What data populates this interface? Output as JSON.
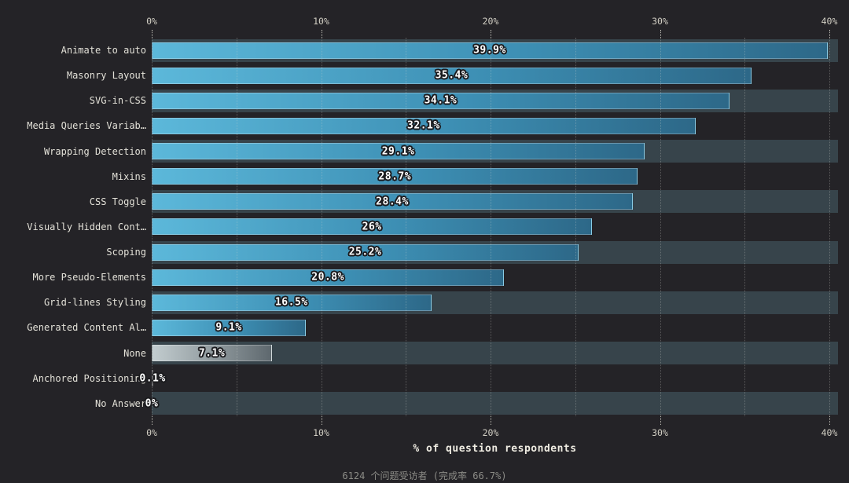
{
  "chart_data": {
    "type": "bar",
    "orientation": "horizontal",
    "xlabel": "% of question respondents",
    "footer": "6124 个问题受访者 (完成率 66.7%)",
    "xlim": [
      0,
      40.5
    ],
    "grid": true,
    "gridline_step_pct": 5,
    "x_ticks": [
      {
        "value": 0,
        "label": "0%"
      },
      {
        "value": 10,
        "label": "10%"
      },
      {
        "value": 20,
        "label": "20%"
      },
      {
        "value": 30,
        "label": "30%"
      },
      {
        "value": 40,
        "label": "40%"
      }
    ],
    "bars": [
      {
        "label": "Animate to auto",
        "value": 39.9,
        "display": "39.9%",
        "style": "blue"
      },
      {
        "label": "Masonry Layout",
        "value": 35.4,
        "display": "35.4%",
        "style": "blue"
      },
      {
        "label": "SVG-in-CSS",
        "value": 34.1,
        "display": "34.1%",
        "style": "blue"
      },
      {
        "label": "Media Queries Variab…",
        "value": 32.1,
        "display": "32.1%",
        "style": "blue"
      },
      {
        "label": "Wrapping Detection",
        "value": 29.1,
        "display": "29.1%",
        "style": "blue"
      },
      {
        "label": "Mixins",
        "value": 28.7,
        "display": "28.7%",
        "style": "blue"
      },
      {
        "label": "CSS Toggle",
        "value": 28.4,
        "display": "28.4%",
        "style": "blue"
      },
      {
        "label": "Visually Hidden Cont…",
        "value": 26,
        "display": "26%",
        "style": "blue"
      },
      {
        "label": "Scoping",
        "value": 25.2,
        "display": "25.2%",
        "style": "blue"
      },
      {
        "label": "More Pseudo-Elements",
        "value": 20.8,
        "display": "20.8%",
        "style": "blue"
      },
      {
        "label": "Grid-lines Styling",
        "value": 16.5,
        "display": "16.5%",
        "style": "blue"
      },
      {
        "label": "Generated Content Al…",
        "value": 9.1,
        "display": "9.1%",
        "style": "blue"
      },
      {
        "label": "None",
        "value": 7.1,
        "display": "7.1%",
        "style": "gray"
      },
      {
        "label": "Anchored Positioning",
        "value": 0.1,
        "display": "0.1%",
        "style": "blue"
      },
      {
        "label": "No Answer",
        "value": 0,
        "display": "0%",
        "style": "blue"
      }
    ],
    "colors": {
      "background": "#242327",
      "track": "#37444b",
      "bar_gradient_start": "#5cb8da",
      "bar_gradient_end": "#2d6888",
      "gray_gradient_start": "#c2cccf",
      "gray_gradient_end": "#5e686e",
      "grid": "#d7d7d2",
      "axis_text": "#d2cfc4",
      "category_text": "#e3e1d8",
      "value_text": "#ffffff",
      "footer_text": "#8c8c87"
    }
  }
}
